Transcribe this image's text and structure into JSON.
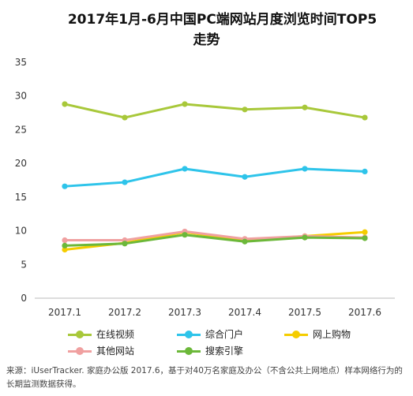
{
  "title_line1": "2017年1月-6月中国PC端网站月度浏览时间TOP5",
  "title_line2": "走势",
  "source": "来源：iUserTracker. 家庭办公版 2017.6，基于对40万名家庭及办公（不含公共上网地点）样本网络行为的长期监测数据获得。",
  "chart_data": {
    "type": "line",
    "title": "2017年1月-6月中国PC端网站月度浏览时间TOP5走势",
    "x": [
      "2017.1",
      "2017.2",
      "2017.3",
      "2017.4",
      "2017.5",
      "2017.6"
    ],
    "ylim": [
      0,
      35
    ],
    "yticks": [
      0,
      5,
      10,
      15,
      20,
      25,
      30,
      35
    ],
    "grid": false,
    "legend_position": "bottom",
    "series": [
      {
        "name": "在线视频",
        "color": "#a8c83a",
        "values": [
          28.8,
          26.8,
          28.8,
          28.0,
          28.3,
          26.8
        ]
      },
      {
        "name": "综合门户",
        "color": "#2ec4ea",
        "values": [
          16.6,
          17.2,
          19.2,
          18.0,
          19.2,
          18.8
        ]
      },
      {
        "name": "网上购物",
        "color": "#f5cd00",
        "values": [
          7.2,
          8.2,
          9.8,
          8.6,
          9.2,
          9.8
        ]
      },
      {
        "name": "其他网站",
        "color": "#f0a0a0",
        "values": [
          8.6,
          8.6,
          9.9,
          8.8,
          9.2,
          9.0
        ]
      },
      {
        "name": "搜索引擎",
        "color": "#6cb83a",
        "values": [
          7.8,
          8.1,
          9.4,
          8.4,
          9.0,
          8.9
        ]
      }
    ]
  }
}
